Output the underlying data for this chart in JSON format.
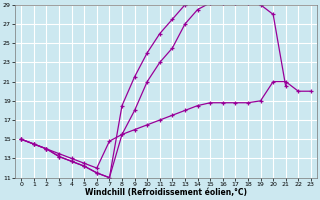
{
  "xlabel": "Windchill (Refroidissement éolien,°C)",
  "ylabel": "",
  "bg_color": "#cce8f0",
  "line_color": "#990099",
  "grid_color": "#ffffff",
  "xlim": [
    -0.5,
    23.5
  ],
  "ylim": [
    11,
    29
  ],
  "xticks": [
    0,
    1,
    2,
    3,
    4,
    5,
    6,
    7,
    8,
    9,
    10,
    11,
    12,
    13,
    14,
    15,
    16,
    17,
    18,
    19,
    20,
    21,
    22,
    23
  ],
  "yticks": [
    11,
    13,
    15,
    17,
    19,
    21,
    23,
    25,
    27,
    29
  ],
  "curve1_x": [
    0,
    1,
    2,
    3,
    4,
    5,
    6,
    7,
    8,
    9,
    10,
    11,
    12,
    13,
    14,
    15,
    16,
    17,
    18,
    19
  ],
  "curve1_y": [
    15,
    14.5,
    14,
    13.2,
    12.7,
    12.2,
    11.5,
    11.0,
    18.5,
    21.5,
    24.0,
    26.0,
    27.5,
    29.0,
    29.2,
    29.2,
    29.2,
    29.2,
    29.2,
    29.2
  ],
  "curve2_x": [
    0,
    1,
    2,
    3,
    4,
    5,
    6,
    7,
    8,
    9,
    10,
    11,
    12,
    13,
    14,
    15,
    16,
    17,
    18,
    19,
    20,
    21
  ],
  "curve2_y": [
    15,
    14.5,
    14,
    13.2,
    12.7,
    12.2,
    11.5,
    11.0,
    15.5,
    18.0,
    21.0,
    23.0,
    24.5,
    27.0,
    28.5,
    29.2,
    29.2,
    29.2,
    29.2,
    29.0,
    28.0,
    20.5
  ],
  "curve3_x": [
    0,
    1,
    2,
    3,
    4,
    5,
    6,
    7,
    8,
    9,
    10,
    11,
    12,
    13,
    14,
    15,
    16,
    17,
    18,
    19,
    20,
    21,
    22,
    23
  ],
  "curve3_y": [
    15.0,
    14.5,
    14.0,
    13.5,
    13.0,
    12.5,
    12.0,
    14.8,
    15.5,
    16.0,
    16.5,
    17.0,
    17.5,
    18.0,
    18.5,
    18.8,
    18.8,
    18.8,
    18.8,
    19.0,
    21.0,
    21.0,
    20.0,
    20.0
  ]
}
